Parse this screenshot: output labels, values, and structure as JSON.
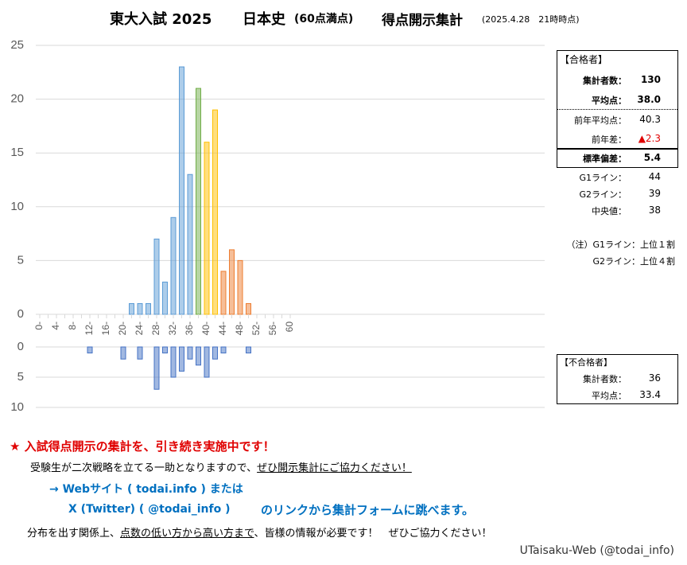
{
  "title": {
    "exam": "東大入試 2025",
    "subject": "日本史",
    "full_marks": "(60点満点)",
    "heading": "得点開示集計",
    "timestamp": "(2025.4.28　21時時点)"
  },
  "chart_data": [
    {
      "type": "bar",
      "categories": [
        "0-",
        null,
        "4-",
        null,
        "8-",
        null,
        "12-",
        null,
        "16-",
        null,
        "20-",
        null,
        "24-",
        null,
        "28-",
        null,
        "32-",
        null,
        "36-",
        null,
        "40-",
        null,
        "44-",
        null,
        "48-",
        null,
        "52-",
        null,
        "56-",
        null,
        "60"
      ],
      "values": [
        0,
        0,
        0,
        0,
        0,
        0,
        0,
        0,
        0,
        0,
        0,
        1,
        1,
        1,
        7,
        3,
        9,
        23,
        13,
        21,
        16,
        19,
        4,
        6,
        5,
        1,
        0,
        0,
        0,
        0,
        0
      ],
      "colors": [
        "#5b9bd5",
        "#5b9bd5",
        "#5b9bd5",
        "#5b9bd5",
        "#5b9bd5",
        "#5b9bd5",
        "#5b9bd5",
        "#5b9bd5",
        "#5b9bd5",
        "#5b9bd5",
        "#5b9bd5",
        "#5b9bd5",
        "#5b9bd5",
        "#5b9bd5",
        "#5b9bd5",
        "#5b9bd5",
        "#5b9bd5",
        "#5b9bd5",
        "#5b9bd5",
        "#70ad47",
        "#ffc000",
        "#ffc000",
        "#ed7d31",
        "#ed7d31",
        "#ed7d31",
        "#ed7d31",
        "#ed7d31",
        "#ed7d31",
        "#ed7d31",
        "#ed7d31",
        "#ed7d31"
      ],
      "ylim": [
        0,
        25
      ],
      "yticks": [
        0,
        5,
        10,
        15,
        20,
        25
      ],
      "grid": true
    },
    {
      "type": "bar",
      "y_inverted": true,
      "values": [
        0,
        0,
        0,
        0,
        0,
        0,
        1,
        0,
        0,
        0,
        2,
        0,
        2,
        0,
        7,
        1,
        5,
        4,
        2,
        3,
        5,
        2,
        1,
        0,
        0,
        1,
        0,
        0,
        0,
        0,
        0
      ],
      "color": "#4472c4",
      "ylim": [
        0,
        10
      ],
      "yticks": [
        0,
        5,
        10
      ],
      "grid": true
    }
  ],
  "pass_stats": {
    "heading": "【合格者】",
    "rows": [
      {
        "label": "集計者数：",
        "value": "130"
      },
      {
        "label": "平均点：",
        "value": "38.0"
      },
      {
        "label": "前年平均点：",
        "value": "40.3"
      },
      {
        "label": "前年差：",
        "value": "▲2.3"
      },
      {
        "label": "標準偏差：",
        "value": "5.4"
      }
    ]
  },
  "lines": [
    {
      "label": "G1ライン：",
      "value": "44"
    },
    {
      "label": "G2ライン：",
      "value": "39"
    },
    {
      "label": "中央値：",
      "value": "38"
    }
  ],
  "notes": [
    "（注）G1ライン：上位１割",
    "G2ライン：上位４割"
  ],
  "fail_stats": {
    "heading": "【不合格者】",
    "rows": [
      {
        "label": "集計者数：",
        "value": "36"
      },
      {
        "label": "平均点：",
        "value": "33.4"
      }
    ]
  },
  "message": {
    "headline": "★ 入試得点開示の集計を、引き続き実施中です！",
    "line1": [
      "受験生が二次戦略を立てる一助となりますので、",
      "ぜひ開示集計にご協力ください！"
    ],
    "web": "→ Webサイト ( todai.info ) または",
    "x": "X (Twitter) ( @todai_info )",
    "link_note": "のリンクから集計フォームに跳べます。",
    "line3": [
      "分布を出す関係上、",
      "点数の低い方から高い方まで",
      "、皆様の情報が必要です！　ぜひご協力ください！"
    ]
  },
  "footer": "UTaisaku-Web (@todai_info)"
}
